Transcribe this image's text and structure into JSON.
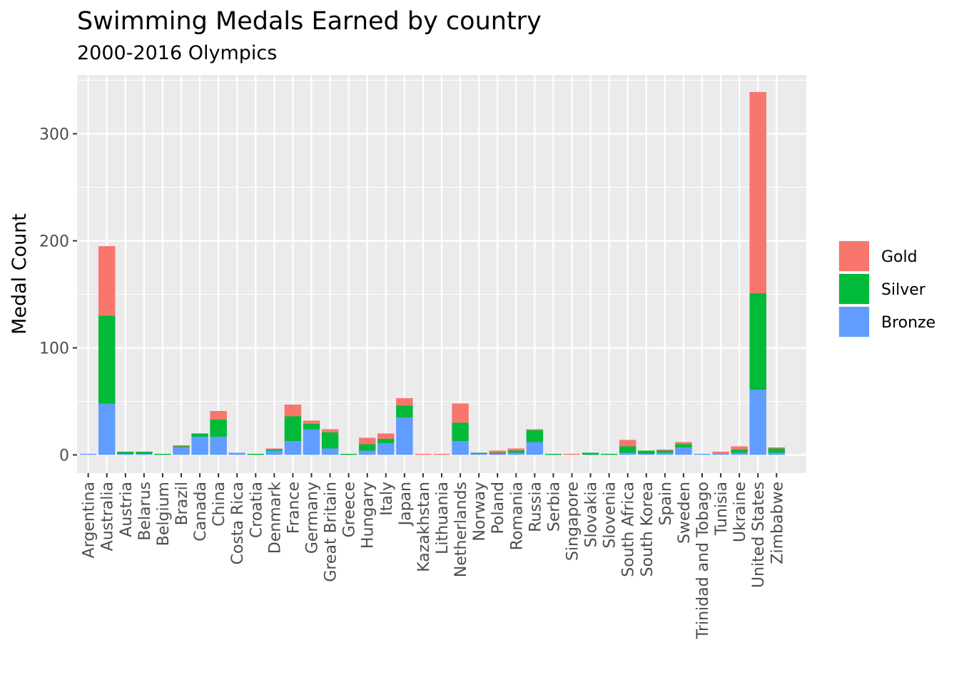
{
  "chart_data": {
    "type": "bar",
    "stacked": true,
    "title": "Swimming Medals Earned by country",
    "subtitle": "2000-2016 Olympics",
    "xlabel": "",
    "ylabel": "Medal Count",
    "ylim": [
      -17,
      355
    ],
    "yticks": [
      0,
      100,
      200,
      300
    ],
    "grid": true,
    "legend_position": "right",
    "categories": [
      "Argentina",
      "Australia",
      "Austria",
      "Belarus",
      "Belgium",
      "Brazil",
      "Canada",
      "China",
      "Costa Rica",
      "Croatia",
      "Denmark",
      "France",
      "Germany",
      "Great Britain",
      "Greece",
      "Hungary",
      "Italy",
      "Japan",
      "Kazakhstan",
      "Lithuania",
      "Netherlands",
      "Norway",
      "Poland",
      "Romania",
      "Russia",
      "Serbia",
      "Singapore",
      "Slovakia",
      "Slovenia",
      "South Africa",
      "South Korea",
      "Spain",
      "Sweden",
      "Trinidad and Tobago",
      "Tunisia",
      "Ukraine",
      "United States",
      "Zimbabwe"
    ],
    "series": [
      {
        "name": "Bronze",
        "color": "#619CFF",
        "values": [
          1,
          48,
          1,
          1,
          0,
          7,
          17,
          17,
          2,
          0,
          4,
          13,
          24,
          6,
          0,
          4,
          11,
          35,
          0,
          0,
          13,
          1,
          1,
          2,
          12,
          0,
          0,
          0,
          0,
          2,
          1,
          2,
          7,
          1,
          1,
          2,
          61,
          2
        ]
      },
      {
        "name": "Silver",
        "color": "#00BA38",
        "values": [
          0,
          82,
          2,
          2,
          1,
          1,
          3,
          16,
          0,
          1,
          1,
          23,
          5,
          15,
          1,
          6,
          4,
          11,
          0,
          0,
          17,
          1,
          1,
          2,
          11,
          1,
          0,
          2,
          1,
          6,
          3,
          2,
          3,
          0,
          0,
          3,
          90,
          4
        ]
      },
      {
        "name": "Gold",
        "color": "#F8766D",
        "values": [
          0,
          65,
          0,
          0,
          0,
          1,
          0,
          8,
          0,
          0,
          1,
          11,
          3,
          3,
          0,
          6,
          5,
          7,
          1,
          1,
          18,
          0,
          2,
          2,
          1,
          0,
          1,
          0,
          0,
          6,
          0,
          1,
          2,
          0,
          2,
          3,
          188,
          1
        ]
      }
    ]
  }
}
